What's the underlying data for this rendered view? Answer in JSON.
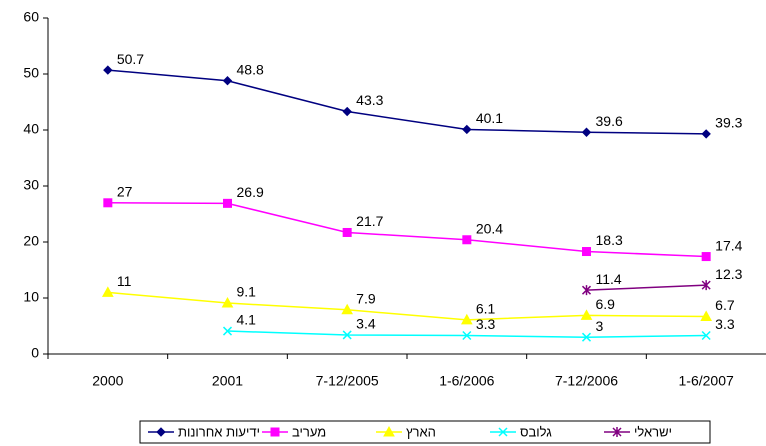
{
  "chart_data": {
    "type": "line",
    "categories": [
      "2000",
      "2001",
      "7-12/2005",
      "1-6/2006",
      "7-12/2006",
      "1-6/2007"
    ],
    "series": [
      {
        "name": "ידיעות אחרונות",
        "color": "#000080",
        "marker": "diamond",
        "values": [
          50.7,
          48.8,
          43.3,
          40.1,
          39.6,
          39.3
        ]
      },
      {
        "name": "מעריב",
        "color": "#FF00FF",
        "marker": "square",
        "values": [
          27,
          26.9,
          21.7,
          20.4,
          18.3,
          17.4
        ]
      },
      {
        "name": "הארץ",
        "color": "#FFFF00",
        "marker": "triangle",
        "values": [
          11,
          9.1,
          7.9,
          6.1,
          6.9,
          6.7
        ]
      },
      {
        "name": "גלובס",
        "color": "#00FFFF",
        "marker": "x",
        "values": [
          null,
          4.1,
          3.4,
          3.3,
          3,
          3.3
        ]
      },
      {
        "name": "ישראלי",
        "color": "#800080",
        "marker": "star",
        "values": [
          null,
          null,
          null,
          null,
          11.4,
          12.3
        ]
      }
    ],
    "ylim": [
      0,
      60
    ],
    "yticks": [
      0,
      10,
      20,
      30,
      40,
      50,
      60
    ],
    "grid": false,
    "legend": "bottom"
  }
}
